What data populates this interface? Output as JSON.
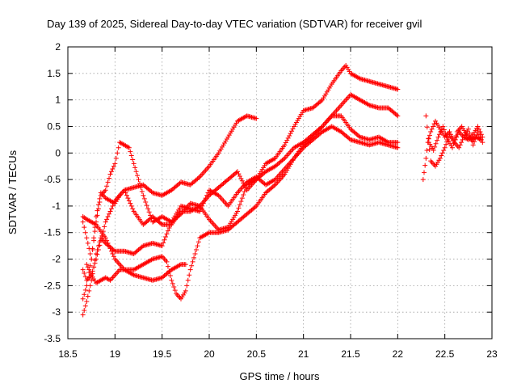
{
  "chart_data": {
    "type": "scatter",
    "title": "Day 139 of 2025, Sidereal Day-to-day VTEC variation (SDTVAR) for receiver gvil",
    "xlabel": "GPS time / hours",
    "ylabel": "SDTVAR / TECUs",
    "xlim": [
      18.5,
      23
    ],
    "ylim": [
      -3.5,
      2
    ],
    "xticks": [
      "18.5",
      "19",
      "19.5",
      "20",
      "20.5",
      "21",
      "21.5",
      "22",
      "22.5",
      "23"
    ],
    "yticks": [
      "-3.5",
      "-3",
      "-2.5",
      "-2",
      "-1.5",
      "-1",
      "-0.5",
      "0",
      "0.5",
      "1",
      "1.5",
      "2"
    ],
    "grid": true,
    "marker": "plus",
    "color": "#ff0000",
    "series": [
      {
        "x": [
          18.66,
          18.7,
          18.75,
          18.8,
          18.85,
          18.9,
          18.95,
          19.0,
          19.05,
          19.1,
          19.2,
          19.3,
          19.4,
          19.5,
          19.6,
          19.7,
          19.8,
          19.9,
          20.0,
          20.1,
          20.2,
          20.3,
          20.4,
          20.5
        ],
        "y": [
          -2.75,
          -2.5,
          -2.0,
          -1.2,
          -0.75,
          -0.85,
          -0.9,
          -0.95,
          -0.8,
          -0.7,
          -0.65,
          -0.6,
          -0.75,
          -0.8,
          -0.7,
          -0.55,
          -0.6,
          -0.45,
          -0.25,
          0.0,
          0.3,
          0.6,
          0.7,
          0.65
        ]
      },
      {
        "x": [
          18.66,
          18.7,
          18.75,
          18.8,
          18.85,
          18.9,
          18.95,
          19.0,
          19.05,
          19.1,
          19.15,
          19.2,
          19.3,
          19.4,
          19.5,
          19.6,
          19.7,
          19.8,
          19.9,
          20.0,
          20.1,
          20.2,
          20.3,
          20.4,
          20.5,
          20.6,
          20.7,
          20.8,
          20.9,
          21.0,
          21.1,
          21.2,
          21.3,
          21.4,
          21.45,
          21.5,
          21.6,
          21.7,
          21.8,
          21.9,
          22.0
        ],
        "y": [
          -1.3,
          -1.6,
          -2.0,
          -1.3,
          -0.8,
          -0.7,
          -0.4,
          -0.2,
          0.2,
          0.15,
          0.1,
          -0.2,
          -0.8,
          -1.3,
          -1.2,
          -1.3,
          -1.15,
          -0.95,
          -1.0,
          -0.8,
          -0.65,
          -0.5,
          -0.35,
          -0.7,
          -0.5,
          -0.2,
          -0.1,
          0.15,
          0.5,
          0.8,
          0.85,
          1.0,
          1.3,
          1.55,
          1.65,
          1.5,
          1.4,
          1.35,
          1.3,
          1.25,
          1.2
        ]
      },
      {
        "x": [
          18.66,
          18.7,
          18.75,
          18.8,
          18.9,
          19.0,
          19.1,
          19.2,
          19.3,
          19.4,
          19.5,
          19.6,
          19.7,
          19.8,
          19.9,
          20.0,
          20.1,
          20.2,
          20.3,
          20.4,
          20.5,
          20.6,
          20.7,
          20.8,
          20.9,
          21.0,
          21.1,
          21.2,
          21.3,
          21.4,
          21.5,
          21.6,
          21.7,
          21.8,
          21.9,
          22.0
        ],
        "y": [
          -2.2,
          -2.4,
          -2.3,
          -2.0,
          -1.3,
          -0.9,
          -0.7,
          -1.1,
          -1.35,
          -1.2,
          -1.35,
          -1.35,
          -1.1,
          -1.1,
          -1.0,
          -1.25,
          -1.45,
          -1.4,
          -1.1,
          -0.6,
          -0.5,
          -0.35,
          -0.25,
          -0.1,
          0.1,
          0.2,
          0.35,
          0.5,
          0.7,
          0.9,
          1.1,
          1.0,
          0.9,
          0.85,
          0.85,
          0.7
        ]
      },
      {
        "x": [
          18.66,
          18.7,
          18.75,
          18.8,
          18.85,
          18.9,
          19.0,
          19.1,
          19.2,
          19.3,
          19.4,
          19.5,
          19.6,
          19.7,
          19.8,
          19.9,
          20.0,
          20.1,
          20.2,
          20.3,
          20.4,
          20.5,
          20.6,
          20.7,
          20.8,
          20.9,
          21.0,
          21.1,
          21.2,
          21.3,
          21.4,
          21.5,
          21.6,
          21.7,
          21.8,
          21.9,
          22.0
        ],
        "y": [
          -3.05,
          -2.8,
          -2.4,
          -1.9,
          -1.6,
          -1.7,
          -1.85,
          -1.85,
          -1.9,
          -1.75,
          -1.7,
          -1.75,
          -1.3,
          -1.0,
          -1.05,
          -1.1,
          -0.7,
          -0.8,
          -1.0,
          -0.75,
          -0.55,
          -0.45,
          -0.6,
          -0.5,
          -0.3,
          -0.1,
          0.15,
          0.3,
          0.5,
          0.7,
          0.7,
          0.45,
          0.3,
          0.25,
          0.3,
          0.2,
          0.2
        ]
      },
      {
        "x": [
          18.66,
          18.7,
          18.75,
          18.8,
          18.9,
          19.0,
          19.05,
          19.1,
          19.2,
          19.3,
          19.4,
          19.5,
          19.55,
          19.6,
          19.65,
          19.7,
          19.75,
          19.8,
          19.9,
          20.0,
          20.1,
          20.2,
          20.3,
          20.4,
          20.5,
          20.6,
          20.7,
          20.8,
          20.9,
          21.0,
          21.1,
          21.2,
          21.3,
          21.4,
          21.5,
          21.6,
          21.7,
          21.8,
          21.9,
          22.0
        ],
        "y": [
          -1.2,
          -1.25,
          -1.3,
          -1.35,
          -1.6,
          -2.0,
          -2.1,
          -2.2,
          -2.2,
          -2.1,
          -2.0,
          -1.95,
          -2.05,
          -2.4,
          -2.65,
          -2.75,
          -2.6,
          -2.2,
          -1.6,
          -1.5,
          -1.5,
          -1.45,
          -1.3,
          -1.15,
          -1.0,
          -0.75,
          -0.6,
          -0.4,
          -0.1,
          0.1,
          0.25,
          0.4,
          0.5,
          0.4,
          0.25,
          0.2,
          0.15,
          0.2,
          0.15,
          0.1
        ]
      },
      {
        "x": [
          18.7,
          18.75,
          18.8,
          18.85,
          18.9,
          18.95,
          19.0,
          19.05,
          19.1,
          19.15,
          19.2,
          19.3,
          19.4,
          19.5,
          19.6,
          19.7,
          19.75
        ],
        "y": [
          -2.1,
          -2.3,
          -2.45,
          -2.4,
          -2.35,
          -2.4,
          -2.3,
          -2.2,
          -2.2,
          -2.25,
          -2.3,
          -2.35,
          -2.4,
          -2.35,
          -2.2,
          -2.1,
          -2.1
        ]
      },
      {
        "x": [
          22.27,
          22.3,
          22.32,
          22.35,
          22.4,
          22.45,
          22.5,
          22.55,
          22.6,
          22.65,
          22.7,
          22.75,
          22.8,
          22.85,
          22.9
        ],
        "y": [
          -0.5,
          -0.1,
          0.2,
          0.4,
          0.6,
          0.45,
          0.3,
          0.4,
          0.2,
          0.4,
          0.3,
          0.25,
          0.35,
          0.5,
          0.3
        ]
      },
      {
        "x": [
          22.3,
          22.35,
          22.4,
          22.45,
          22.5,
          22.55,
          22.6,
          22.65,
          22.7,
          22.75,
          22.8,
          22.85,
          22.9
        ],
        "y": [
          0.7,
          -0.15,
          -0.25,
          -0.1,
          0.1,
          0.35,
          0.2,
          0.1,
          0.3,
          0.45,
          0.15,
          0.4,
          0.2
        ]
      },
      {
        "x": [
          22.33,
          22.38,
          22.43,
          22.48,
          22.53,
          22.58,
          22.63,
          22.68,
          22.73,
          22.78,
          22.83,
          22.88
        ],
        "y": [
          0.2,
          0.05,
          0.3,
          0.5,
          0.25,
          0.1,
          0.4,
          0.5,
          0.35,
          0.25,
          0.3,
          0.25
        ]
      }
    ]
  }
}
